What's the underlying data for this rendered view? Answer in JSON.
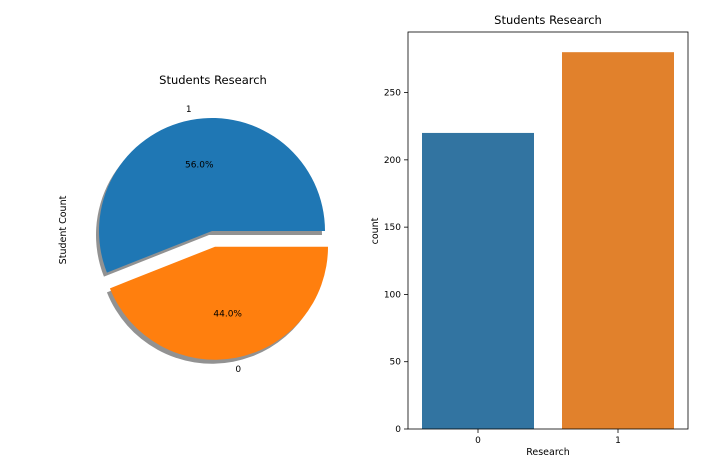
{
  "chart_data": [
    {
      "type": "pie",
      "title": "Students Research",
      "ylabel": "Student Count",
      "slices": [
        {
          "label": "1",
          "value": 56.0,
          "pct_label": "56.0%",
          "color": "#1f77b4",
          "explode": false
        },
        {
          "label": "0",
          "value": 44.0,
          "pct_label": "44.0%",
          "color": "#ff7f0e",
          "explode": true
        }
      ],
      "shadow": true
    },
    {
      "type": "bar",
      "title": "Students Research",
      "xlabel": "Research",
      "ylabel": "count",
      "categories": [
        "0",
        "1"
      ],
      "values": [
        220,
        280
      ],
      "colors": [
        "#3274a1",
        "#e1812c"
      ],
      "ylim": [
        0,
        295
      ],
      "yticks": [
        0,
        50,
        100,
        150,
        200,
        250
      ],
      "grid": false
    }
  ]
}
